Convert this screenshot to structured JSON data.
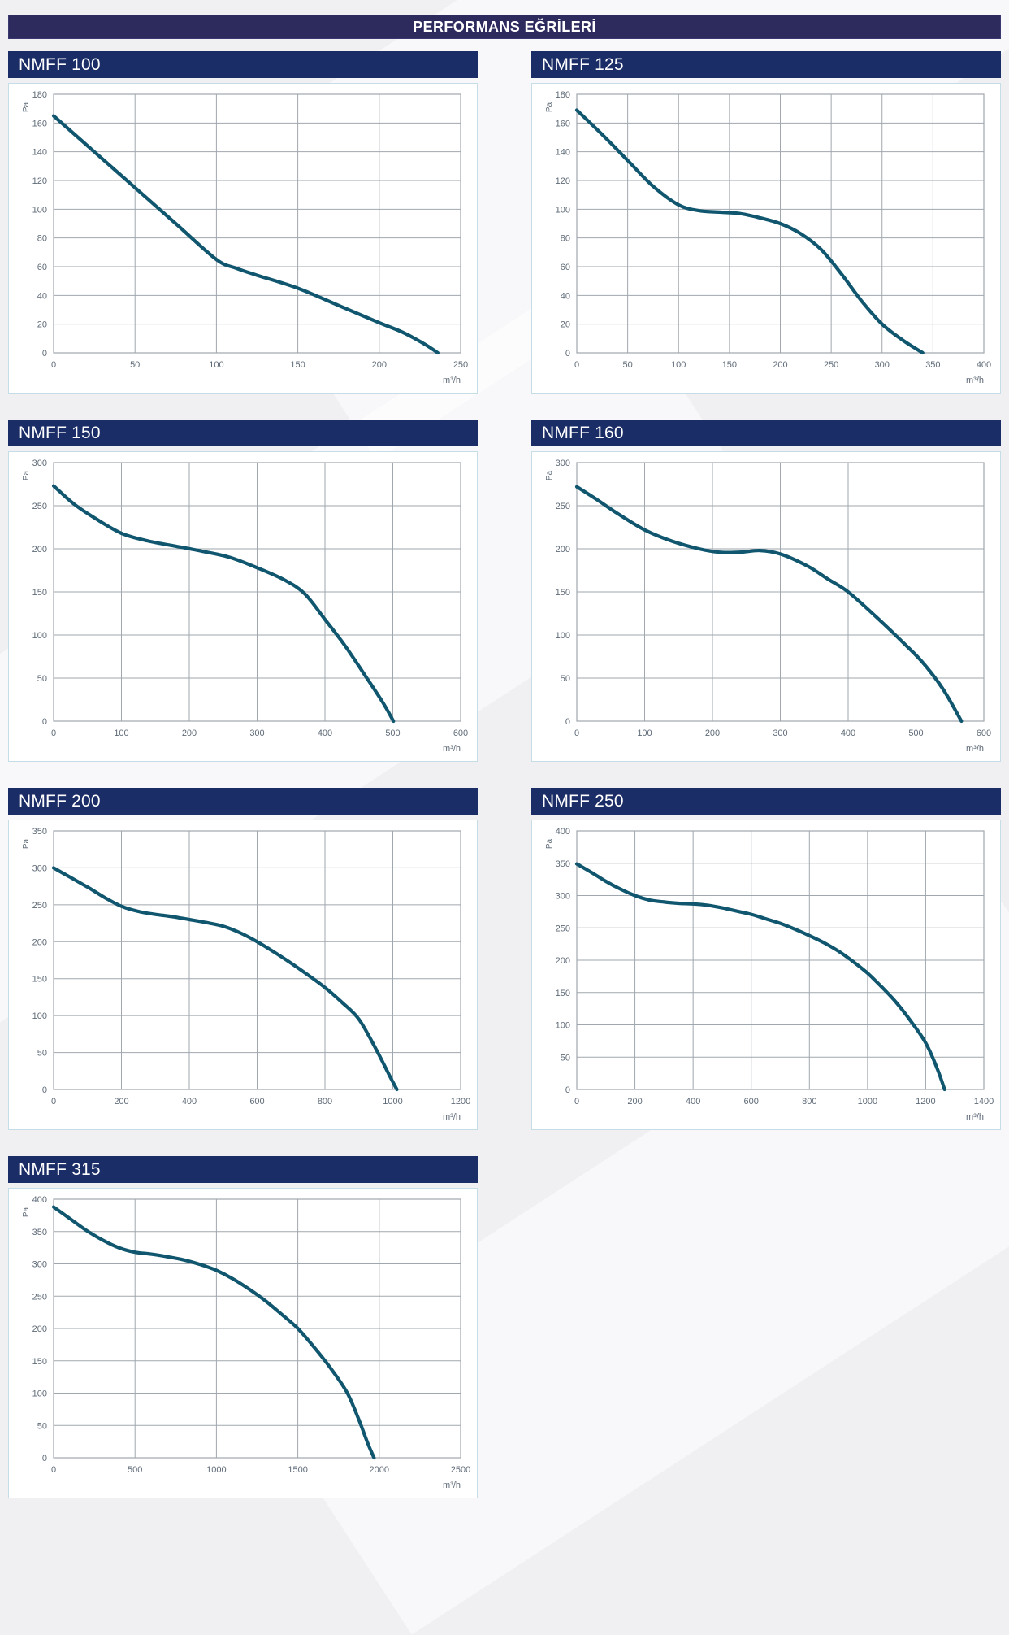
{
  "header": {
    "title": "PERFORMANS EĞRİLERİ"
  },
  "style": {
    "page_bg": "#f0f0f3",
    "header_bg": "#2d2b5e",
    "title_bar_bg": "#1a2d66",
    "title_text_color": "#ffffff",
    "curve_color": "#0f566e",
    "grid_color": "#a0a7ae",
    "axis_text_color": "#5f6b78",
    "panel_border": "#c5dde6"
  },
  "chart_data": [
    {
      "type": "line",
      "title": "NMFF 100",
      "ylabel": "Pa",
      "xlabel": "m³/h",
      "xlim": [
        0,
        250
      ],
      "xstep": 50,
      "ylim": [
        0,
        180
      ],
      "ystep": 20,
      "grid": true,
      "points": [
        [
          0,
          165
        ],
        [
          25,
          140
        ],
        [
          50,
          115
        ],
        [
          75,
          90
        ],
        [
          100,
          65
        ],
        [
          112,
          59
        ],
        [
          125,
          54
        ],
        [
          150,
          45
        ],
        [
          175,
          33
        ],
        [
          200,
          21
        ],
        [
          215,
          14
        ],
        [
          228,
          6
        ],
        [
          236,
          0
        ]
      ]
    },
    {
      "type": "line",
      "title": "NMFF 125",
      "ylabel": "Pa",
      "xlabel": "m³/h",
      "xlim": [
        0,
        400
      ],
      "xstep": 50,
      "ylim": [
        0,
        180
      ],
      "ystep": 20,
      "grid": true,
      "points": [
        [
          0,
          169
        ],
        [
          25,
          152
        ],
        [
          50,
          134
        ],
        [
          75,
          116
        ],
        [
          100,
          103
        ],
        [
          120,
          99
        ],
        [
          140,
          98
        ],
        [
          160,
          97
        ],
        [
          180,
          94
        ],
        [
          200,
          90
        ],
        [
          220,
          83
        ],
        [
          240,
          72
        ],
        [
          260,
          55
        ],
        [
          280,
          36
        ],
        [
          300,
          20
        ],
        [
          320,
          9
        ],
        [
          340,
          0
        ]
      ]
    },
    {
      "type": "line",
      "title": "NMFF 150",
      "ylabel": "Pa",
      "xlabel": "m³/h",
      "xlim": [
        0,
        600
      ],
      "xstep": 100,
      "ylim": [
        0,
        300
      ],
      "ystep": 50,
      "grid": true,
      "points": [
        [
          0,
          273
        ],
        [
          30,
          252
        ],
        [
          60,
          236
        ],
        [
          100,
          218
        ],
        [
          140,
          209
        ],
        [
          180,
          203
        ],
        [
          220,
          197
        ],
        [
          260,
          190
        ],
        [
          300,
          178
        ],
        [
          340,
          164
        ],
        [
          370,
          148
        ],
        [
          400,
          118
        ],
        [
          430,
          87
        ],
        [
          460,
          52
        ],
        [
          485,
          22
        ],
        [
          501,
          0
        ]
      ]
    },
    {
      "type": "line",
      "title": "NMFF 160",
      "ylabel": "Pa",
      "xlabel": "m³/h",
      "xlim": [
        0,
        600
      ],
      "xstep": 100,
      "ylim": [
        0,
        300
      ],
      "ystep": 50,
      "grid": true,
      "points": [
        [
          0,
          272
        ],
        [
          30,
          257
        ],
        [
          60,
          241
        ],
        [
          100,
          222
        ],
        [
          140,
          209
        ],
        [
          180,
          200
        ],
        [
          210,
          196
        ],
        [
          240,
          196
        ],
        [
          270,
          198
        ],
        [
          300,
          194
        ],
        [
          340,
          180
        ],
        [
          370,
          165
        ],
        [
          400,
          150
        ],
        [
          440,
          122
        ],
        [
          480,
          92
        ],
        [
          510,
          68
        ],
        [
          540,
          37
        ],
        [
          567,
          0
        ]
      ]
    },
    {
      "type": "line",
      "title": "NMFF 200",
      "ylabel": "Pa",
      "xlabel": "m³/h",
      "xlim": [
        0,
        1200
      ],
      "xstep": 200,
      "ylim": [
        0,
        350
      ],
      "ystep": 50,
      "grid": true,
      "points": [
        [
          0,
          300
        ],
        [
          50,
          287
        ],
        [
          100,
          274
        ],
        [
          150,
          260
        ],
        [
          200,
          248
        ],
        [
          250,
          241
        ],
        [
          300,
          237
        ],
        [
          350,
          234
        ],
        [
          400,
          230
        ],
        [
          450,
          226
        ],
        [
          500,
          221
        ],
        [
          550,
          212
        ],
        [
          600,
          200
        ],
        [
          650,
          186
        ],
        [
          700,
          171
        ],
        [
          750,
          155
        ],
        [
          800,
          138
        ],
        [
          850,
          118
        ],
        [
          900,
          95
        ],
        [
          950,
          55
        ],
        [
          990,
          19
        ],
        [
          1012,
          0
        ]
      ]
    },
    {
      "type": "line",
      "title": "NMFF 250",
      "ylabel": "Pa",
      "xlabel": "m³/h",
      "xlim": [
        0,
        1400
      ],
      "xstep": 200,
      "ylim": [
        0,
        400
      ],
      "ystep": 50,
      "grid": true,
      "points": [
        [
          0,
          349
        ],
        [
          50,
          336
        ],
        [
          100,
          322
        ],
        [
          150,
          310
        ],
        [
          200,
          300
        ],
        [
          250,
          293
        ],
        [
          300,
          290
        ],
        [
          350,
          288
        ],
        [
          400,
          287
        ],
        [
          450,
          285
        ],
        [
          500,
          281
        ],
        [
          550,
          276
        ],
        [
          600,
          271
        ],
        [
          650,
          264
        ],
        [
          700,
          257
        ],
        [
          750,
          248
        ],
        [
          800,
          238
        ],
        [
          850,
          227
        ],
        [
          900,
          214
        ],
        [
          950,
          198
        ],
        [
          1000,
          180
        ],
        [
          1050,
          158
        ],
        [
          1100,
          134
        ],
        [
          1150,
          105
        ],
        [
          1200,
          72
        ],
        [
          1240,
          32
        ],
        [
          1265,
          0
        ]
      ]
    },
    {
      "type": "line",
      "title": "NMFF 315",
      "ylabel": "Pa",
      "xlabel": "m³/h",
      "xlim": [
        0,
        2500
      ],
      "xstep": 500,
      "ylim": [
        0,
        400
      ],
      "ystep": 50,
      "grid": true,
      "points": [
        [
          0,
          388
        ],
        [
          100,
          370
        ],
        [
          200,
          352
        ],
        [
          300,
          337
        ],
        [
          400,
          325
        ],
        [
          500,
          318
        ],
        [
          600,
          315
        ],
        [
          700,
          311
        ],
        [
          800,
          306
        ],
        [
          900,
          299
        ],
        [
          1000,
          290
        ],
        [
          1100,
          277
        ],
        [
          1200,
          261
        ],
        [
          1300,
          243
        ],
        [
          1400,
          222
        ],
        [
          1500,
          200
        ],
        [
          1600,
          171
        ],
        [
          1700,
          139
        ],
        [
          1800,
          102
        ],
        [
          1870,
          62
        ],
        [
          1930,
          22
        ],
        [
          1968,
          0
        ]
      ]
    }
  ]
}
